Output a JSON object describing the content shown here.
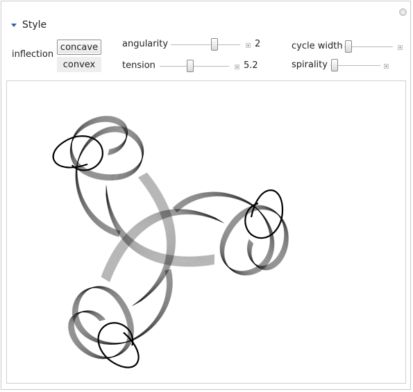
{
  "section": {
    "title": "Style"
  },
  "controls": {
    "inflection": {
      "label": "inflection",
      "options": [
        "concave",
        "convex"
      ],
      "selected": "concave"
    },
    "angularity": {
      "label": "angularity",
      "value": "2",
      "position": 0.62
    },
    "tension": {
      "label": "tension",
      "value": "5.2",
      "position": 0.42
    },
    "cycle_width": {
      "label": "cycle width",
      "position": 0.04
    },
    "spirality": {
      "label": "spirality",
      "position": 0.06
    }
  },
  "colors": {
    "accent": "#2f5fa8",
    "stroke": "#000000"
  },
  "icons": {
    "close": "close-circle-icon",
    "expand": "triangle-down-icon",
    "increment": "plus-icon"
  }
}
